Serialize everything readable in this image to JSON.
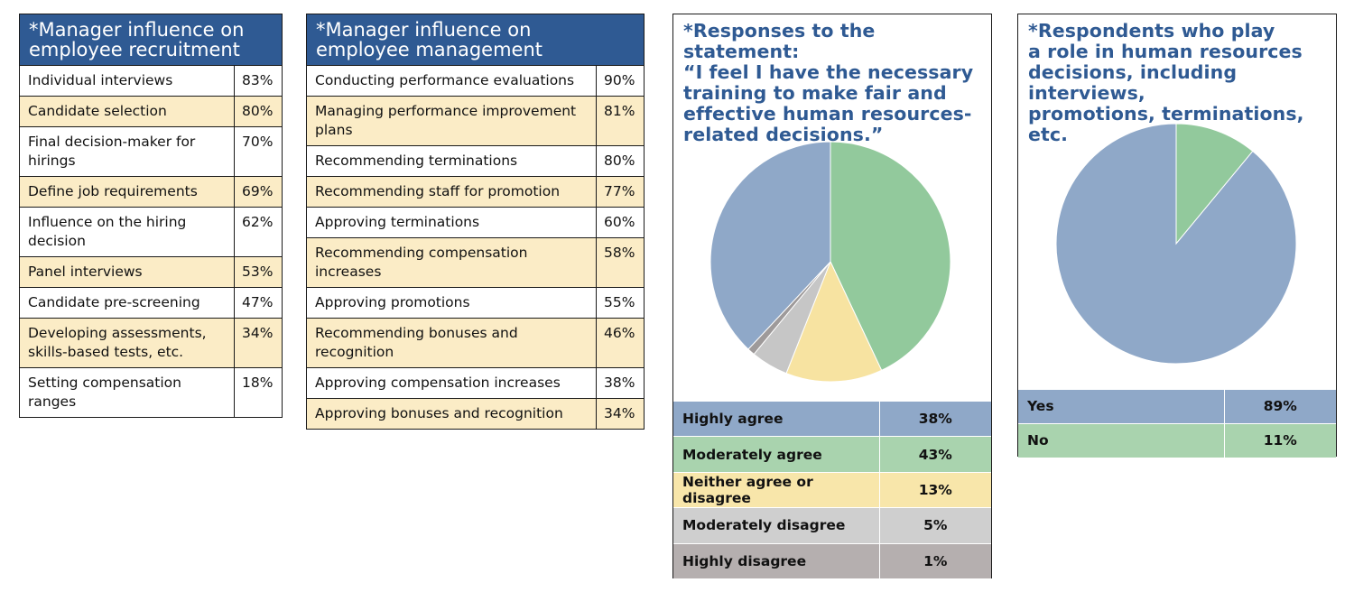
{
  "recruitment": {
    "title_line1": "*Manager influence on",
    "title_line2": "employee recruitment",
    "rows": [
      {
        "label": "Individual interviews",
        "value": "83%"
      },
      {
        "label": "Candidate selection",
        "value": "80%"
      },
      {
        "label": "Final decision-maker for hirings",
        "value": "70%"
      },
      {
        "label": "Define job requirements",
        "value": "69%"
      },
      {
        "label": "Influence on the hiring decision",
        "value": "62%"
      },
      {
        "label": "Panel interviews",
        "value": "53%"
      },
      {
        "label": "Candidate pre-screening",
        "value": "47%"
      },
      {
        "label": "Developing assessments, skills-based tests, etc.",
        "value": "34%"
      },
      {
        "label": "Setting compensation ranges",
        "value": "18%"
      }
    ]
  },
  "management": {
    "title_line1": "*Manager influence on",
    "title_line2": "employee management",
    "rows": [
      {
        "label": "Conducting performance evaluations",
        "value": "90%"
      },
      {
        "label": "Managing performance improvement plans",
        "value": "81%"
      },
      {
        "label": "Recommending terminations",
        "value": "80%"
      },
      {
        "label": "Recommending staff for promotion",
        "value": "77%"
      },
      {
        "label": "Approving terminations",
        "value": "60%"
      },
      {
        "label": "Recommending compensation increases",
        "value": "58%"
      },
      {
        "label": "Approving promotions",
        "value": "55%"
      },
      {
        "label": "Recommending bonuses and recognition",
        "value": "46%"
      },
      {
        "label": "Approving compensation increases",
        "value": "38%"
      },
      {
        "label": "Approving bonuses and recognition",
        "value": "34%"
      }
    ]
  },
  "colors": {
    "header_blue": "#2f5a93",
    "row_alt": "#fbecc6",
    "blue": "#8fa8c8",
    "green": "#92c99c",
    "yellow": "#f7e3a1",
    "lightgray": "#c6c6c6",
    "darkgray": "#9e9a9a"
  },
  "chart_data": [
    {
      "type": "pie",
      "title_lines": [
        "*Responses to the statement:",
        "“I feel I have the necessary",
        "training to make fair and",
        "effective human resources-",
        "related decisions.”"
      ],
      "categories": [
        "Highly agree",
        "Moderately agree",
        "Neither agree or disagree",
        "Moderately disagree",
        "Highly disagree"
      ],
      "values": [
        38,
        43,
        13,
        5,
        1
      ],
      "labels": [
        "38%",
        "43%",
        "13%",
        "5%",
        "1%"
      ],
      "slice_colors": [
        "#8fa8c8",
        "#92c99c",
        "#f7e3a1",
        "#c6c6c6",
        "#9e9a9a"
      ],
      "legend_colors": [
        "#8fa8c8",
        "#a9d3ae",
        "#f8e6aa",
        "#cfcfcf",
        "#b5afaf"
      ]
    },
    {
      "type": "pie",
      "title_lines": [
        "*Respondents who play",
        "a role in human resources",
        "decisions, including interviews,",
        "promotions, terminations, etc."
      ],
      "categories": [
        "Yes",
        "No"
      ],
      "values": [
        89,
        11
      ],
      "labels": [
        "89%",
        "11%"
      ],
      "slice_colors": [
        "#8fa8c8",
        "#92c99c"
      ],
      "legend_colors": [
        "#8fa8c8",
        "#a9d3ae"
      ]
    }
  ]
}
